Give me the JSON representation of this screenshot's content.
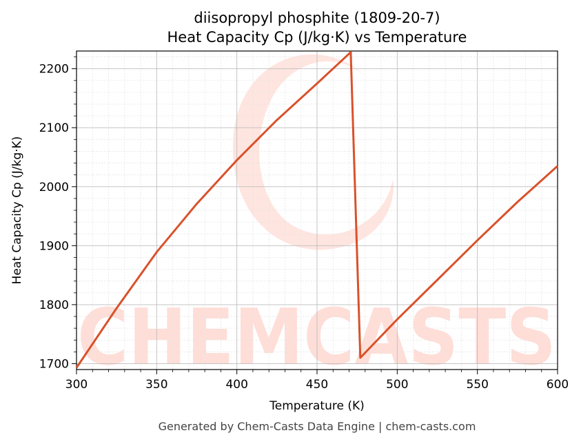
{
  "chart_data": {
    "type": "line",
    "title_line1": "diisopropyl phosphite (1809-20-7)",
    "title_line2": "Heat Capacity Cp (J/kg·K) vs Temperature",
    "xlabel": "Temperature (K)",
    "ylabel": "Heat Capacity Cp (J/kg·K)",
    "xlim": [
      300,
      600
    ],
    "ylim": [
      1690,
      2230
    ],
    "xticks": [
      300,
      350,
      400,
      450,
      500,
      550,
      600
    ],
    "yticks": [
      1700,
      1800,
      1900,
      2000,
      2100,
      2200
    ],
    "grid": true,
    "line_color": "#d9512a",
    "series": [
      {
        "x": [
          300,
          325,
          350,
          375,
          400,
          425,
          450,
          471,
          477,
          500,
          525,
          550,
          575,
          600
        ],
        "y": [
          1693,
          1794,
          1889,
          1971,
          2045,
          2113,
          2175,
          2228,
          1710,
          1775,
          1842,
          1909,
          1974,
          2035
        ]
      }
    ],
    "footer": "Generated by Chem-Casts Data Engine | chem-casts.com",
    "watermark": "CHEMCASTS"
  }
}
